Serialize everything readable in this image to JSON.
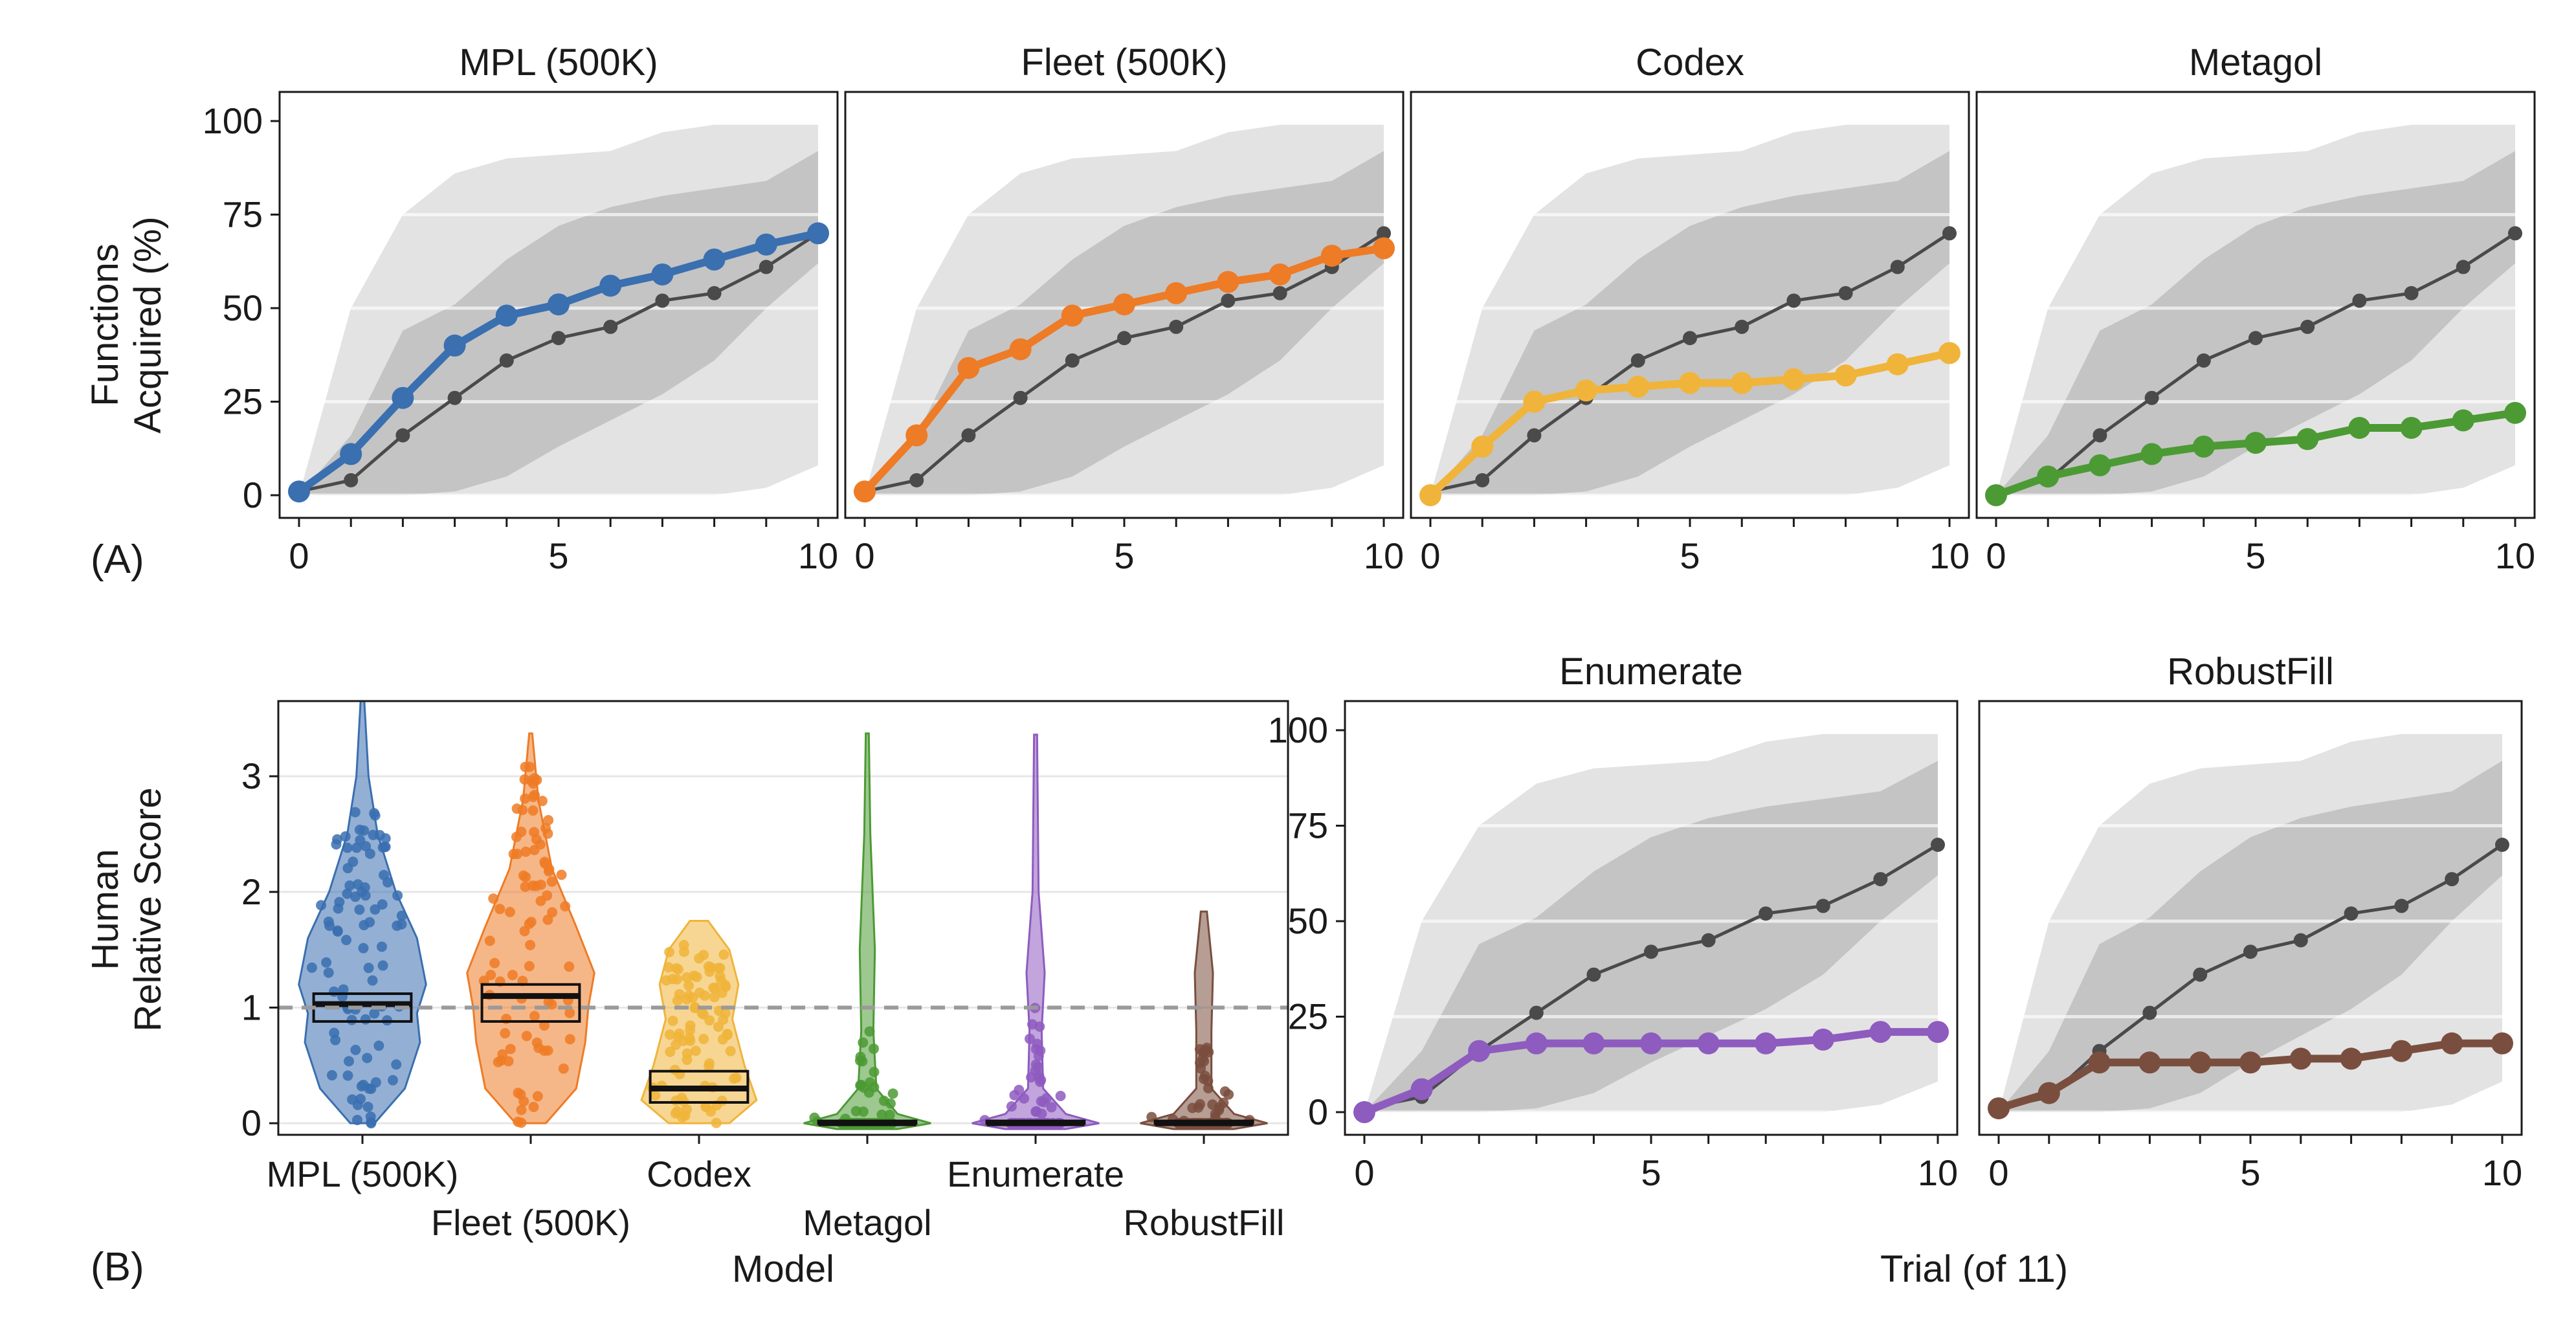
{
  "figure": {
    "panel_label_a": "(A)",
    "panel_label_b": "(B)",
    "y_label_a_line1": "Functions",
    "y_label_a_line2": "Acquired (%)",
    "y_label_b_line1": "Human",
    "y_label_b_line2": "Relative Score",
    "x_label_b": "Model",
    "x_label_trial": "Trial (of 11)"
  },
  "colors": {
    "MPL (500K)": "#3a6fb0",
    "Fleet (500K)": "#ee7b26",
    "Codex": "#f0b43a",
    "Metagol": "#4c9a34",
    "Enumerate": "#8e5bbf",
    "RobustFill": "#7a4e3e",
    "human": "#4a4a4a",
    "band_outer": "#e3e3e3",
    "band_inner": "#c4c4c4"
  },
  "chart_data": [
    {
      "type": "line",
      "title": "MPL (500K)",
      "x": [
        0,
        1,
        2,
        3,
        4,
        5,
        6,
        7,
        8,
        9,
        10
      ],
      "xlim": [
        0,
        10
      ],
      "ylim": [
        0,
        100
      ],
      "xticks": [
        0,
        5,
        10
      ],
      "yticks": [
        0,
        25,
        50,
        75,
        100
      ],
      "series": [
        {
          "model": "MPL (500K)",
          "values": [
            1,
            11,
            26,
            40,
            48,
            51,
            56,
            59,
            63,
            67,
            70
          ]
        },
        {
          "model": "human",
          "values": [
            1,
            4,
            16,
            26,
            36,
            42,
            45,
            52,
            54,
            61,
            70
          ]
        }
      ]
    },
    {
      "type": "line",
      "title": "Fleet (500K)",
      "x": [
        0,
        1,
        2,
        3,
        4,
        5,
        6,
        7,
        8,
        9,
        10
      ],
      "xlim": [
        0,
        10
      ],
      "ylim": [
        0,
        100
      ],
      "xticks": [
        0,
        5,
        10
      ],
      "yticks": [
        0,
        25,
        50,
        75,
        100
      ],
      "series": [
        {
          "model": "Fleet (500K)",
          "values": [
            1,
            16,
            34,
            39,
            48,
            51,
            54,
            57,
            59,
            64,
            66
          ]
        },
        {
          "model": "human",
          "values": [
            1,
            4,
            16,
            26,
            36,
            42,
            45,
            52,
            54,
            61,
            70
          ]
        }
      ]
    },
    {
      "type": "line",
      "title": "Codex",
      "x": [
        0,
        1,
        2,
        3,
        4,
        5,
        6,
        7,
        8,
        9,
        10
      ],
      "xlim": [
        0,
        10
      ],
      "ylim": [
        0,
        100
      ],
      "xticks": [
        0,
        5,
        10
      ],
      "yticks": [
        0,
        25,
        50,
        75,
        100
      ],
      "series": [
        {
          "model": "Codex",
          "values": [
            0,
            13,
            25,
            28,
            29,
            30,
            30,
            31,
            32,
            35,
            38
          ]
        },
        {
          "model": "human",
          "values": [
            1,
            4,
            16,
            26,
            36,
            42,
            45,
            52,
            54,
            61,
            70
          ]
        }
      ]
    },
    {
      "type": "line",
      "title": "Metagol",
      "x": [
        0,
        1,
        2,
        3,
        4,
        5,
        6,
        7,
        8,
        9,
        10
      ],
      "xlim": [
        0,
        10
      ],
      "ylim": [
        0,
        100
      ],
      "xticks": [
        0,
        5,
        10
      ],
      "yticks": [
        0,
        25,
        50,
        75,
        100
      ],
      "series": [
        {
          "model": "Metagol",
          "values": [
            0,
            5,
            8,
            11,
            13,
            14,
            15,
            18,
            18,
            20,
            22
          ]
        },
        {
          "model": "human",
          "values": [
            1,
            4,
            16,
            26,
            36,
            42,
            45,
            52,
            54,
            61,
            70
          ]
        }
      ]
    },
    {
      "type": "line",
      "title": "Enumerate",
      "x": [
        0,
        1,
        2,
        3,
        4,
        5,
        6,
        7,
        8,
        9,
        10
      ],
      "xlim": [
        0,
        10
      ],
      "ylim": [
        0,
        100
      ],
      "xticks": [
        0,
        5,
        10
      ],
      "yticks": [
        0,
        25,
        50,
        75,
        100
      ],
      "series": [
        {
          "model": "Enumerate",
          "values": [
            0,
            6,
            16,
            18,
            18,
            18,
            18,
            18,
            19,
            21,
            21
          ]
        },
        {
          "model": "human",
          "values": [
            1,
            4,
            16,
            26,
            36,
            42,
            45,
            52,
            54,
            61,
            70
          ]
        }
      ]
    },
    {
      "type": "line",
      "title": "RobustFill",
      "x": [
        0,
        1,
        2,
        3,
        4,
        5,
        6,
        7,
        8,
        9,
        10
      ],
      "xlim": [
        0,
        10
      ],
      "ylim": [
        0,
        100
      ],
      "xticks": [
        0,
        5,
        10
      ],
      "yticks": [
        0,
        25,
        50,
        75,
        100
      ],
      "series": [
        {
          "model": "RobustFill",
          "values": [
            1,
            5,
            13,
            13,
            13,
            13,
            14,
            14,
            16,
            18,
            18
          ]
        },
        {
          "model": "human",
          "values": [
            1,
            4,
            16,
            26,
            36,
            42,
            45,
            52,
            54,
            61,
            70
          ]
        }
      ]
    },
    {
      "type": "violin",
      "categories": [
        "MPL (500K)",
        "Fleet (500K)",
        "Codex",
        "Metagol",
        "Enumerate",
        "RobustFill"
      ],
      "ylim": [
        -0.1,
        3.65
      ],
      "yticks": [
        0,
        1,
        2,
        3
      ],
      "reference_line": 1,
      "xlabel": "Model",
      "boxes": [
        {
          "model": "MPL (500K)",
          "low": 0.88,
          "mid": 1.03,
          "high": 1.12
        },
        {
          "model": "Fleet (500K)",
          "low": 0.88,
          "mid": 1.1,
          "high": 1.2
        },
        {
          "model": "Codex",
          "low": 0.18,
          "mid": 0.3,
          "high": 0.45
        },
        {
          "model": "Metagol",
          "low": 0.0,
          "mid": 0.0,
          "high": 0.02
        },
        {
          "model": "Enumerate",
          "low": 0.0,
          "mid": 0.0,
          "high": 0.02
        },
        {
          "model": "RobustFill",
          "low": 0.0,
          "mid": 0.0,
          "high": 0.02
        }
      ]
    }
  ]
}
